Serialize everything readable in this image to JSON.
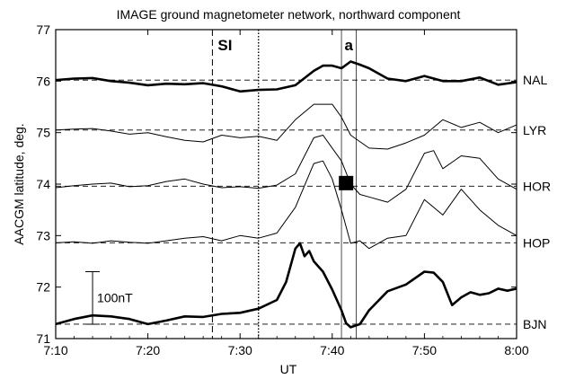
{
  "chart_data": {
    "type": "line",
    "title": "IMAGE ground magnetometer network, northward component",
    "xlabel": "UT",
    "ylabel": "AACGM latitude, deg.",
    "x_range_minutes": [
      430,
      480
    ],
    "ylim": [
      71,
      77
    ],
    "x_ticks": [
      {
        "min": 430,
        "label": "7:10"
      },
      {
        "min": 440,
        "label": "7:20"
      },
      {
        "min": 450,
        "label": "7:30"
      },
      {
        "min": 460,
        "label": "7:40"
      },
      {
        "min": 470,
        "label": "7:50"
      },
      {
        "min": 480,
        "label": "8:00"
      }
    ],
    "y_ticks": [
      71,
      72,
      73,
      74,
      75,
      76,
      77
    ],
    "event_lines": [
      {
        "label": "SI",
        "x_min": 447.0,
        "style": "dashed"
      },
      {
        "label": "",
        "x_min": 452.0,
        "style": "dotted"
      },
      {
        "label": "a",
        "x_min": 461.0,
        "style": "solid-thin"
      },
      {
        "label": "",
        "x_min": 462.6,
        "style": "solid-thin"
      }
    ],
    "scale_bar": {
      "label": "100nT",
      "x_min": 434.0,
      "y_bottom": 71.28,
      "y_top": 72.3
    },
    "marker": {
      "x_min": 461.5,
      "y": 74.02,
      "shape": "filled-square"
    },
    "series": [
      {
        "name": "NAL",
        "baseline": 76.02,
        "weight": "thick",
        "x": [
          430,
          432,
          434,
          436,
          438,
          440,
          442,
          444,
          446,
          448,
          450,
          452,
          454,
          456,
          458,
          459,
          460,
          461,
          462,
          463,
          464,
          466,
          468,
          470,
          472,
          474,
          476,
          478,
          480
        ],
        "y": [
          76.02,
          76.05,
          76.06,
          76.0,
          75.97,
          75.92,
          75.95,
          75.94,
          75.96,
          75.9,
          75.8,
          75.83,
          75.84,
          75.92,
          76.2,
          76.3,
          76.3,
          76.25,
          76.38,
          76.32,
          76.25,
          76.05,
          76.0,
          76.1,
          76.0,
          76.0,
          76.07,
          75.93,
          75.98
        ]
      },
      {
        "name": "LYR",
        "baseline": 75.05,
        "weight": "thin",
        "x": [
          430,
          432,
          434,
          436,
          438,
          440,
          442,
          444,
          446,
          448,
          450,
          452,
          454,
          456,
          458,
          460,
          461,
          462,
          464,
          466,
          468,
          470,
          472,
          474,
          476,
          478,
          480
        ],
        "y": [
          75.05,
          75.07,
          75.08,
          75.03,
          74.97,
          75.0,
          74.92,
          74.85,
          74.82,
          74.95,
          74.9,
          74.93,
          74.85,
          75.25,
          75.55,
          75.55,
          75.3,
          74.95,
          74.7,
          74.68,
          74.8,
          74.95,
          75.25,
          75.1,
          75.2,
          75.0,
          75.15
        ]
      },
      {
        "name": "HOR",
        "baseline": 73.96,
        "weight": "thin",
        "x": [
          430,
          432,
          434,
          436,
          438,
          440,
          442,
          444,
          446,
          448,
          450,
          452,
          454,
          456,
          458,
          459,
          460,
          461,
          462,
          463,
          464,
          466,
          468,
          470,
          471,
          472,
          474,
          476,
          478,
          480
        ],
        "y": [
          73.93,
          73.97,
          74.0,
          74.02,
          73.95,
          73.97,
          74.05,
          74.1,
          74.0,
          73.93,
          73.95,
          73.92,
          73.98,
          74.2,
          74.9,
          74.95,
          74.7,
          74.45,
          74.0,
          73.8,
          73.75,
          73.65,
          73.9,
          74.6,
          74.65,
          74.3,
          74.55,
          74.5,
          74.1,
          73.9
        ]
      },
      {
        "name": "HOP",
        "baseline": 72.86,
        "weight": "thin",
        "x": [
          430,
          432,
          434,
          436,
          438,
          440,
          442,
          444,
          446,
          448,
          450,
          452,
          454,
          456,
          458,
          459,
          460,
          461,
          462,
          463,
          464,
          466,
          468,
          470,
          472,
          474,
          476,
          478,
          480
        ],
        "y": [
          72.86,
          72.88,
          72.85,
          72.9,
          72.87,
          72.85,
          72.9,
          72.95,
          72.98,
          72.9,
          73.0,
          72.95,
          73.05,
          73.55,
          74.4,
          74.45,
          74.1,
          73.5,
          72.85,
          72.9,
          72.75,
          72.95,
          73.0,
          73.7,
          73.4,
          73.9,
          73.5,
          73.2,
          73.0
        ]
      },
      {
        "name": "BJN",
        "baseline": 71.28,
        "weight": "thick",
        "x": [
          430,
          432,
          434,
          436,
          438,
          440,
          442,
          444,
          446,
          448,
          450,
          452,
          454,
          455,
          456,
          456.5,
          457,
          457.5,
          458,
          459,
          460,
          461,
          461.5,
          462,
          463,
          464,
          466,
          468,
          470,
          471,
          472,
          473,
          474,
          475,
          476,
          477,
          478,
          479,
          480
        ],
        "y": [
          71.28,
          71.38,
          71.45,
          71.43,
          71.38,
          71.28,
          71.35,
          71.43,
          71.42,
          71.48,
          71.5,
          71.58,
          71.75,
          72.1,
          72.75,
          72.85,
          72.6,
          72.7,
          72.5,
          72.3,
          71.95,
          71.55,
          71.3,
          71.22,
          71.28,
          71.55,
          71.92,
          72.05,
          72.3,
          72.28,
          72.1,
          71.65,
          71.8,
          71.9,
          71.85,
          71.88,
          71.97,
          71.93,
          71.97
        ]
      }
    ]
  }
}
